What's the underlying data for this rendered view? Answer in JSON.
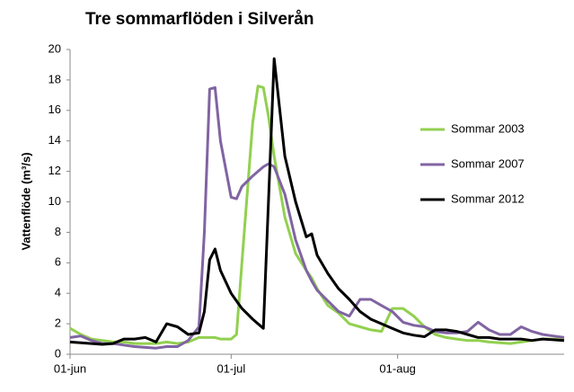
{
  "chart_data": {
    "type": "line",
    "title": "Tre sommarflöden i Silverån",
    "y_label": "Vattenflöde (m³/s)",
    "x": [
      0,
      2,
      4,
      6,
      8,
      10,
      12,
      14,
      16,
      18,
      20,
      22,
      24,
      25,
      26,
      27,
      28,
      30,
      31,
      32,
      34,
      35,
      36,
      37,
      38,
      40,
      42,
      44,
      45,
      46,
      48,
      50,
      52,
      54,
      56,
      58,
      60,
      62,
      64,
      66,
      68,
      70,
      72,
      74,
      76,
      78,
      80,
      82,
      84,
      86,
      88,
      90,
      92
    ],
    "xlim": [
      0,
      92
    ],
    "xticks": [
      {
        "value": 0,
        "label": "01-jun"
      },
      {
        "value": 30,
        "label": "01-jul"
      },
      {
        "value": 61,
        "label": "01-aug"
      }
    ],
    "ylim": [
      0,
      20
    ],
    "yticks": [
      0,
      2,
      4,
      6,
      8,
      10,
      12,
      14,
      16,
      18,
      20
    ],
    "grid": false,
    "legend": "right",
    "series": [
      {
        "name": "Sommar 2003",
        "color": "#92d050",
        "values": [
          1.7,
          1.3,
          1.0,
          0.9,
          0.8,
          0.8,
          0.7,
          0.7,
          0.7,
          0.8,
          0.7,
          0.8,
          1.1,
          1.1,
          1.1,
          1.1,
          1.0,
          1.0,
          1.3,
          6.0,
          15.2,
          17.6,
          17.5,
          15.5,
          13.0,
          9.0,
          6.6,
          5.5,
          5.0,
          4.3,
          3.2,
          2.7,
          2.0,
          1.8,
          1.6,
          1.5,
          3.0,
          3.0,
          2.5,
          1.8,
          1.3,
          1.1,
          1.0,
          0.9,
          0.9,
          0.8,
          0.75,
          0.7,
          0.8,
          0.9,
          1.0,
          1.0,
          1.0
        ]
      },
      {
        "name": "Sommar 2007",
        "color": "#8064a2",
        "values": [
          1.1,
          1.2,
          0.9,
          0.7,
          0.7,
          0.6,
          0.5,
          0.45,
          0.4,
          0.5,
          0.5,
          0.9,
          1.8,
          8.0,
          17.4,
          17.5,
          14.0,
          10.3,
          10.2,
          11.0,
          11.7,
          12.0,
          12.3,
          12.5,
          12.3,
          10.5,
          7.5,
          5.5,
          4.8,
          4.2,
          3.5,
          2.8,
          2.5,
          3.6,
          3.6,
          3.2,
          2.8,
          2.1,
          1.9,
          1.8,
          1.5,
          1.4,
          1.4,
          1.5,
          2.1,
          1.6,
          1.3,
          1.3,
          1.8,
          1.5,
          1.3,
          1.2,
          1.1
        ]
      },
      {
        "name": "Sommar 2012",
        "color": "#000000",
        "values": [
          0.8,
          0.75,
          0.7,
          0.65,
          0.7,
          1.0,
          1.0,
          1.1,
          0.8,
          2.0,
          1.8,
          1.3,
          1.4,
          2.8,
          6.2,
          6.9,
          5.5,
          4.0,
          3.5,
          3.0,
          2.3,
          2.0,
          1.7,
          10.5,
          19.4,
          13.0,
          10.0,
          7.7,
          7.9,
          6.5,
          5.3,
          4.3,
          3.6,
          2.8,
          2.3,
          2.0,
          1.7,
          1.4,
          1.25,
          1.15,
          1.6,
          1.6,
          1.5,
          1.3,
          1.1,
          1.1,
          1.0,
          1.0,
          1.0,
          0.9,
          1.0,
          0.95,
          0.9
        ]
      }
    ]
  }
}
